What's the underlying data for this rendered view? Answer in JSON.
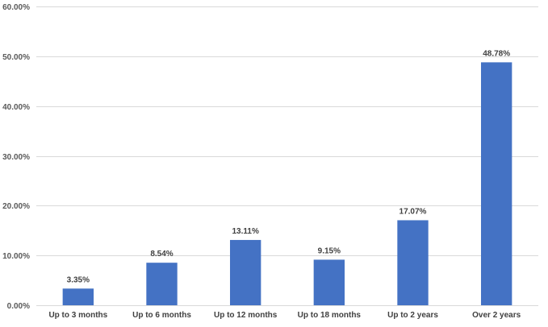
{
  "chart_data": {
    "type": "bar",
    "title": "",
    "xlabel": "",
    "ylabel": "",
    "categories": [
      "Up to 3 months",
      "Up to 6 months",
      "Up to 12 months",
      "Up to 18 months",
      "Up to 2 years",
      "Over 2 years"
    ],
    "values": [
      3.35,
      8.54,
      13.11,
      9.15,
      17.07,
      48.78
    ],
    "data_labels": [
      "3.35%",
      "8.54%",
      "13.11%",
      "9.15%",
      "17.07%",
      "48.78%"
    ],
    "ylim": [
      0,
      60
    ],
    "y_ticks": [
      0,
      10,
      20,
      30,
      40,
      50,
      60
    ],
    "y_tick_labels": [
      "0.00%",
      "10.00%",
      "20.00%",
      "30.00%",
      "40.00%",
      "50.00%",
      "60.00%"
    ],
    "grid": true,
    "legend": "none",
    "colors": {
      "bar": "#4472C4",
      "grid": "#D9D9D9",
      "axis": "#D9D9D9"
    }
  }
}
